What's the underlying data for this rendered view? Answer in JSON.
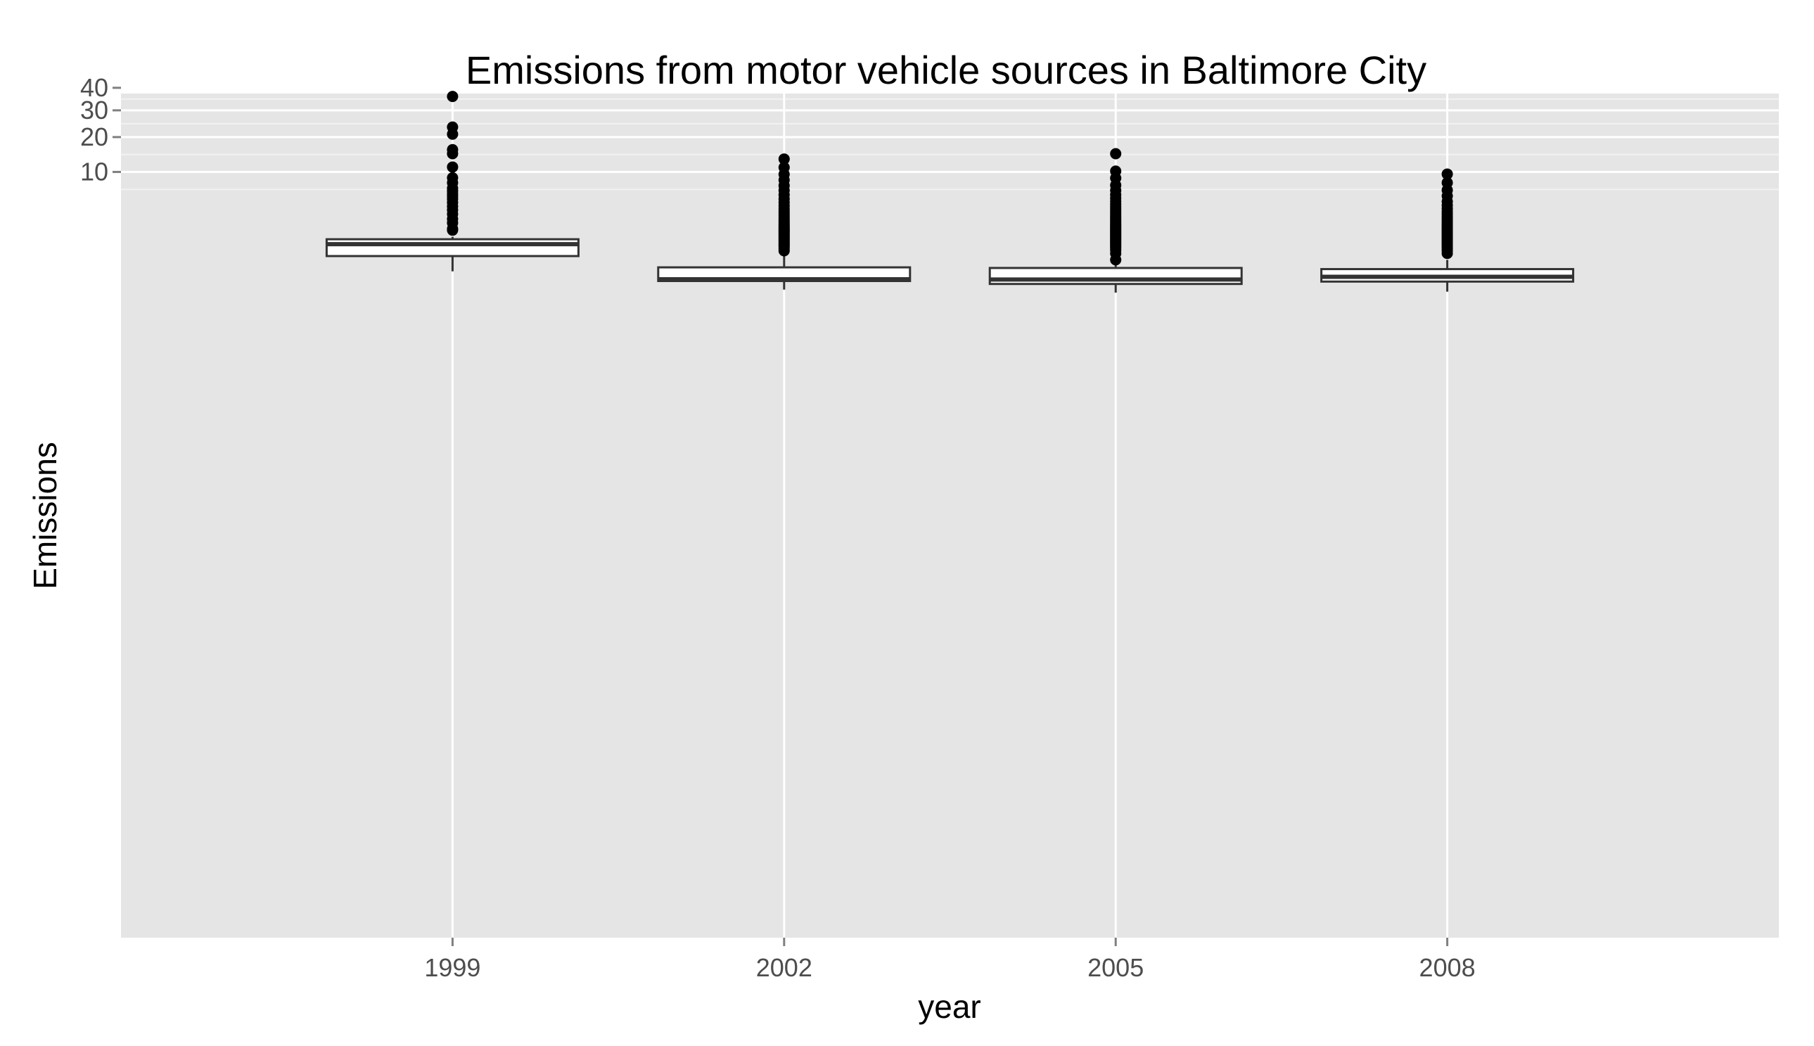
{
  "chart_data": {
    "type": "box",
    "title": "Emissions from motor vehicle sources in Baltimore City",
    "xlabel": "year",
    "ylabel": "Emissions",
    "y_scale": "sqrt",
    "y_ticks": [
      10,
      20,
      30,
      40
    ],
    "y_tick_labels": [
      "10",
      "20",
      "30",
      "40"
    ],
    "grid": true,
    "colors": {
      "panel": "#e5e5e5",
      "grid_major": "#ffffff",
      "grid_minor": "#f2f2f2",
      "box_fill": "#ffffff",
      "box_stroke": "#333333",
      "outlier": "#000000",
      "tick_text": "#4d4d4d"
    },
    "categories": [
      "1999",
      "2002",
      "2005",
      "2008"
    ],
    "boxes": [
      {
        "category": "1999",
        "lower_whisker": -0.33,
        "q1": 0.0,
        "median": 0.2,
        "q3": 0.4,
        "upper_whisker": 0.53,
        "outliers": [
          0.95,
          1.05,
          1.55,
          1.95,
          2.5,
          3.0,
          3.5,
          4.05,
          4.6,
          5.05,
          5.5,
          6.0,
          6.5,
          7.6,
          8.65,
          11.2,
          14.8,
          16.0,
          21.0,
          23.5,
          36.0
        ]
      },
      {
        "category": "2002",
        "lower_whisker": -1.59,
        "q1": -0.88,
        "median": -0.76,
        "q3": -0.18,
        "upper_whisker": 0.01,
        "outliers": [
          0.04,
          0.08,
          0.12,
          0.16,
          0.2,
          0.25,
          0.3,
          0.36,
          0.42,
          0.48,
          0.55,
          0.62,
          0.7,
          0.78,
          0.86,
          0.94,
          1.02,
          1.12,
          1.22,
          1.34,
          1.46,
          1.6,
          1.75,
          1.93,
          2.13,
          2.35,
          2.6,
          2.89,
          3.2,
          3.6,
          4.05,
          4.6,
          5.3,
          6.1,
          7.0,
          8.15,
          9.45,
          11.1,
          13.3
        ]
      },
      {
        "category": "2005",
        "lower_whisker": -1.89,
        "q1": -1.1,
        "median": -0.78,
        "q3": -0.2,
        "upper_whisker": -0.03,
        "outliers": [
          -0.02,
          0.01,
          0.05,
          0.09,
          0.13,
          0.17,
          0.22,
          0.27,
          0.32,
          0.38,
          0.44,
          0.51,
          0.58,
          0.66,
          0.74,
          0.82,
          0.91,
          1.0,
          1.1,
          1.21,
          1.33,
          1.46,
          1.6,
          1.76,
          1.93,
          2.12,
          2.33,
          2.56,
          2.82,
          3.1,
          3.42,
          3.78,
          4.2,
          4.7,
          5.3,
          6.1,
          7.1,
          8.6,
          10.2,
          14.8
        ]
      },
      {
        "category": "2008",
        "lower_whisker": -1.79,
        "q1": -0.92,
        "median": -0.61,
        "q3": -0.24,
        "upper_whisker": -0.02,
        "outliers": [
          0.01,
          0.04,
          0.08,
          0.12,
          0.17,
          0.22,
          0.27,
          0.33,
          0.39,
          0.46,
          0.53,
          0.61,
          0.7,
          0.79,
          0.89,
          1.0,
          1.12,
          1.25,
          1.4,
          1.56,
          1.75,
          1.96,
          2.2,
          2.48,
          2.8,
          3.18,
          3.65,
          4.2,
          5.1,
          6.15,
          7.6,
          9.5
        ]
      }
    ]
  }
}
